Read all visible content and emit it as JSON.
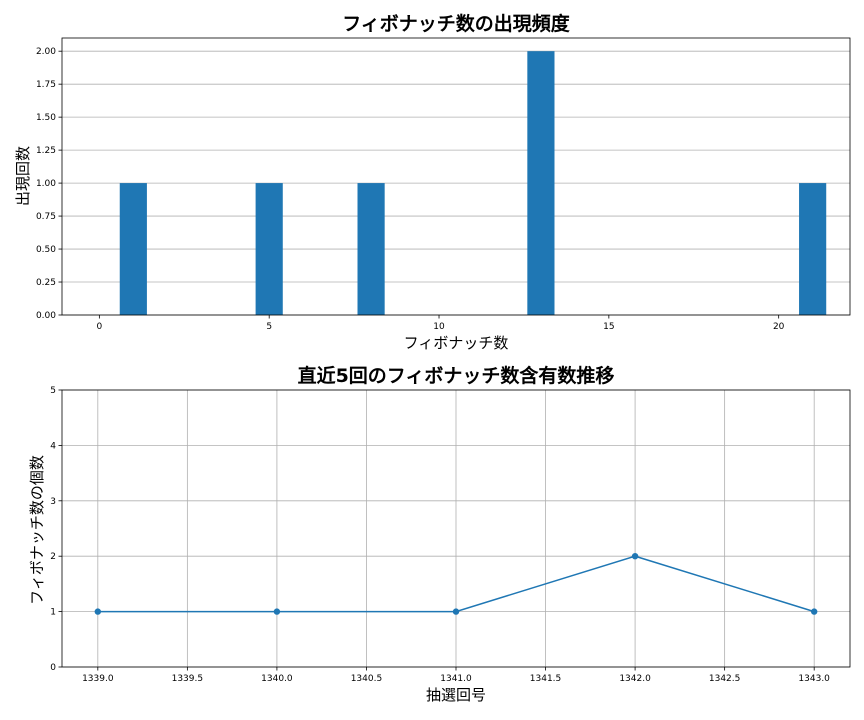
{
  "chart_data": [
    {
      "type": "bar",
      "title": "フィボナッチ数の出現頻度",
      "xlabel": "フィボナッチ数",
      "ylabel": "出現回数",
      "x": [
        1,
        5,
        8,
        13,
        21
      ],
      "values": [
        1,
        1,
        1,
        2,
        1
      ],
      "xlim": [
        -1.1,
        22.1
      ],
      "ylim": [
        0,
        2.1
      ],
      "xticks": [
        0,
        5,
        10,
        15,
        20
      ],
      "xtick_labels": [
        "0",
        "5",
        "10",
        "15",
        "20"
      ],
      "yticks": [
        0,
        0.25,
        0.5,
        0.75,
        1.0,
        1.25,
        1.5,
        1.75,
        2.0
      ],
      "ytick_labels": [
        "0.00",
        "0.25",
        "0.50",
        "0.75",
        "1.00",
        "1.25",
        "1.50",
        "1.75",
        "2.00"
      ],
      "grid": "y",
      "color": "#1f77b4"
    },
    {
      "type": "line",
      "title": "直近5回のフィボナッチ数含有数推移",
      "xlabel": "抽選回号",
      "ylabel": "フィボナッチ数の個数",
      "x": [
        1339,
        1340,
        1341,
        1342,
        1343
      ],
      "values": [
        1,
        1,
        1,
        2,
        1
      ],
      "xlim": [
        1338.8,
        1343.2
      ],
      "ylim": [
        0,
        5
      ],
      "xticks": [
        1339.0,
        1339.5,
        1340.0,
        1340.5,
        1341.0,
        1341.5,
        1342.0,
        1342.5,
        1343.0
      ],
      "xtick_labels": [
        "1339.0",
        "1339.5",
        "1340.0",
        "1340.5",
        "1341.0",
        "1341.5",
        "1342.0",
        "1342.5",
        "1343.0"
      ],
      "yticks": [
        0,
        1,
        2,
        3,
        4,
        5
      ],
      "ytick_labels": [
        "0",
        "1",
        "2",
        "3",
        "4",
        "5"
      ],
      "grid": "both",
      "color": "#1f77b4",
      "marker": "circle"
    }
  ]
}
